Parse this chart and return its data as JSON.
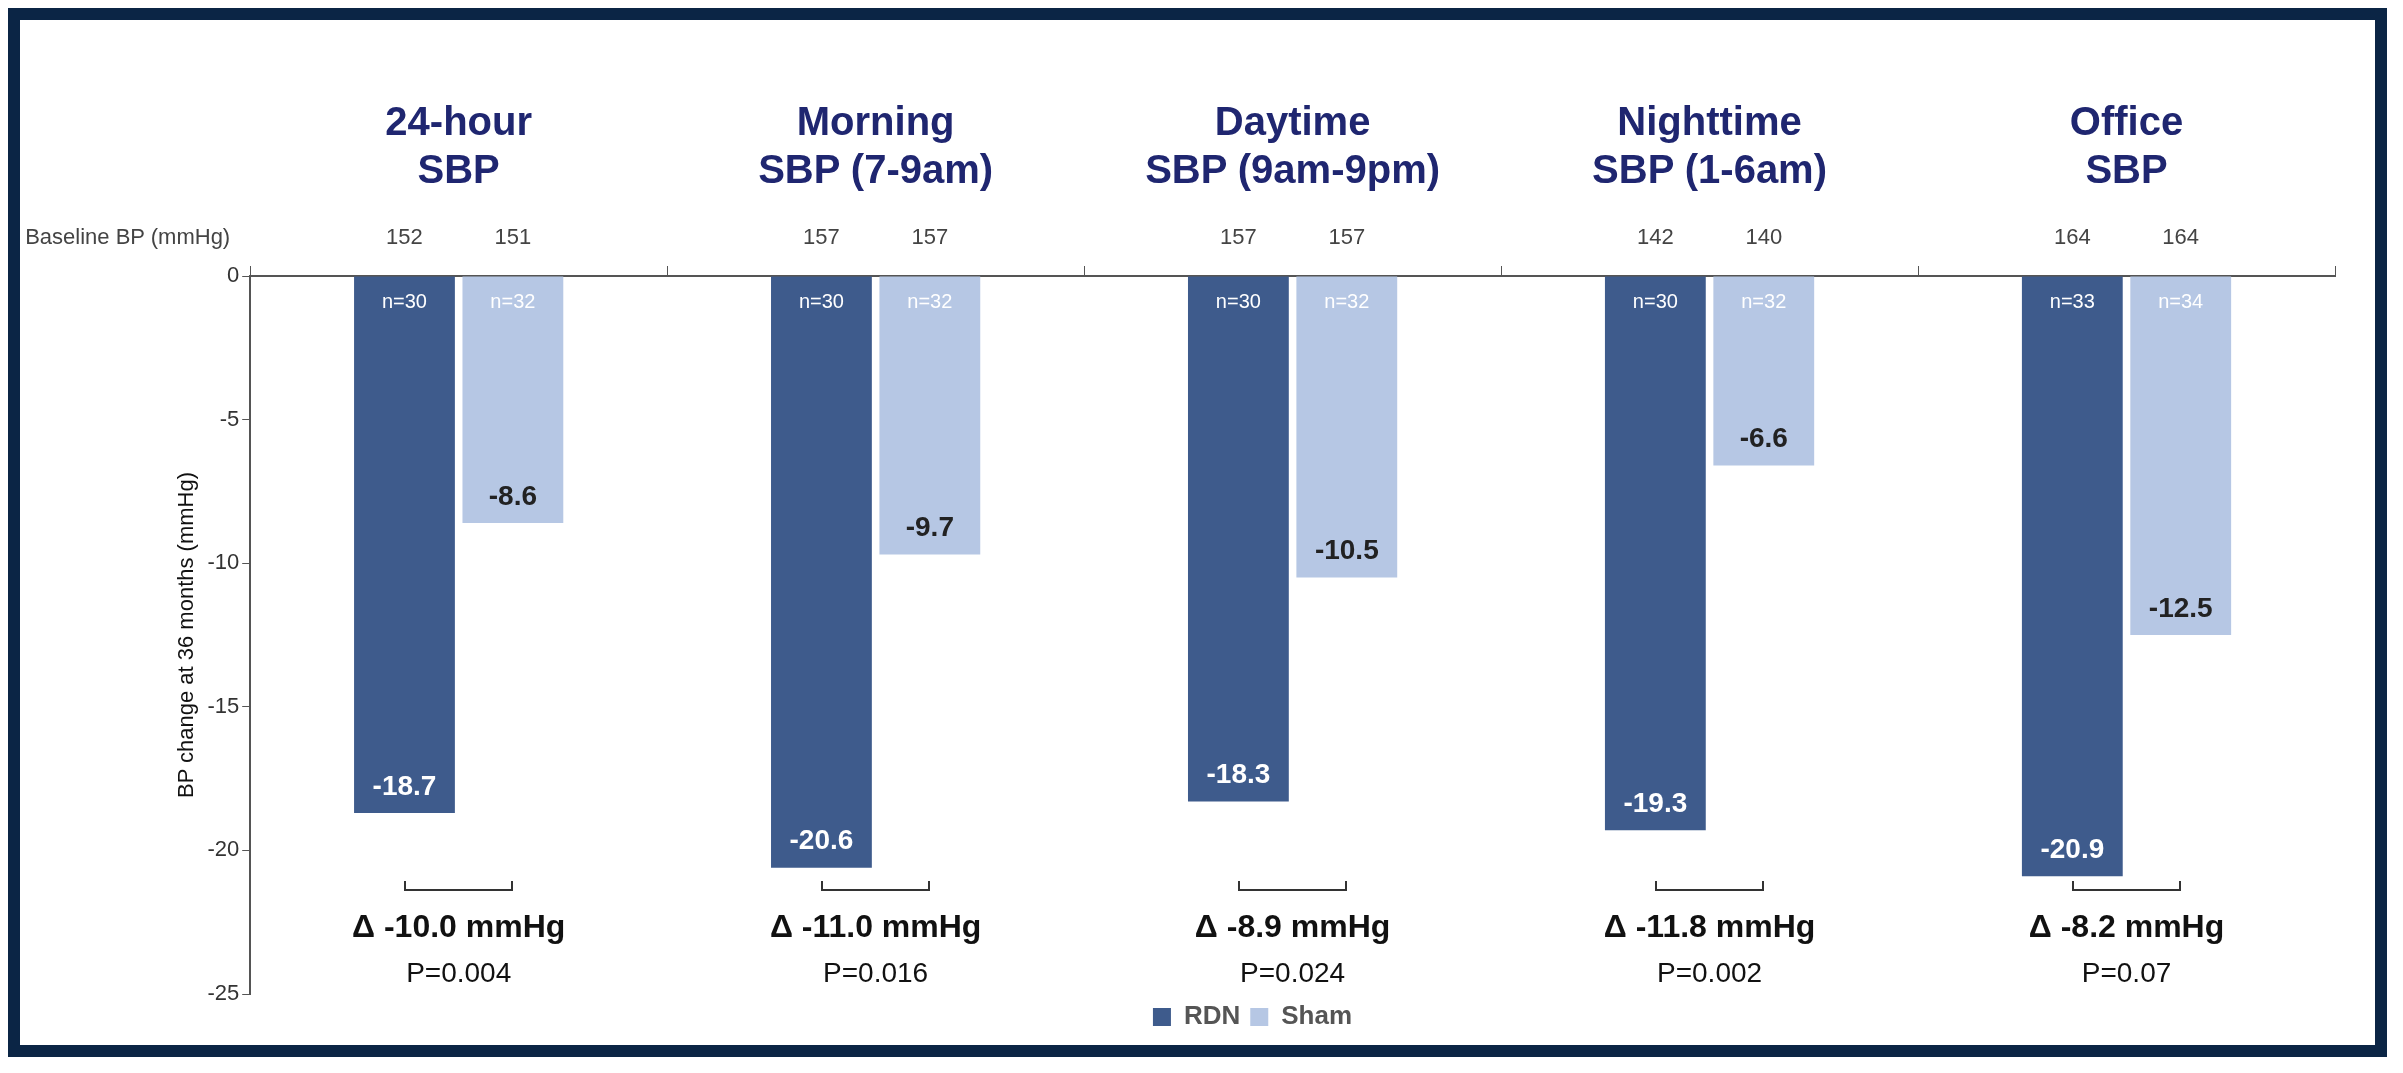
{
  "chart_data": {
    "type": "bar",
    "ylabel": "BP change at 36 months (mmHg)",
    "categories": [
      "24-hour SBP",
      "Morning SBP (7-9am)",
      "Daytime SBP (9am-9pm)",
      "Nighttime SBP (1-6am)",
      "Office SBP"
    ],
    "series": [
      {
        "name": "RDN",
        "color": "#3e5b8c",
        "values": [
          -18.7,
          -20.6,
          -18.3,
          -19.3,
          -20.9
        ]
      },
      {
        "name": "Sham",
        "color": "#b6c7e4",
        "values": [
          -8.6,
          -9.7,
          -10.5,
          -6.6,
          -12.5
        ]
      }
    ],
    "ylim": [
      -25,
      0
    ],
    "yticks": [
      0,
      -5,
      -10,
      -15,
      -20,
      -25
    ],
    "grid": false,
    "legend": "bottom",
    "data_labels": true,
    "annotations": [
      "Baseline BP (mmHg)",
      "152",
      "151",
      "157",
      "157",
      "157",
      "157",
      "142",
      "140",
      "164",
      "164",
      "n=30",
      "n=32",
      "n=30",
      "n=32",
      "n=30",
      "n=32",
      "n=30",
      "n=32",
      "n=33",
      "n=34",
      "Δ -10.0 mmHg",
      "Δ -11.0 mmHg",
      "Δ -8.9 mmHg",
      "Δ -11.8 mmHg",
      "Δ -8.2 mmHg",
      "P=0.004",
      "P=0.016",
      "P=0.024",
      "P=0.002",
      "P=0.07"
    ]
  }
}
